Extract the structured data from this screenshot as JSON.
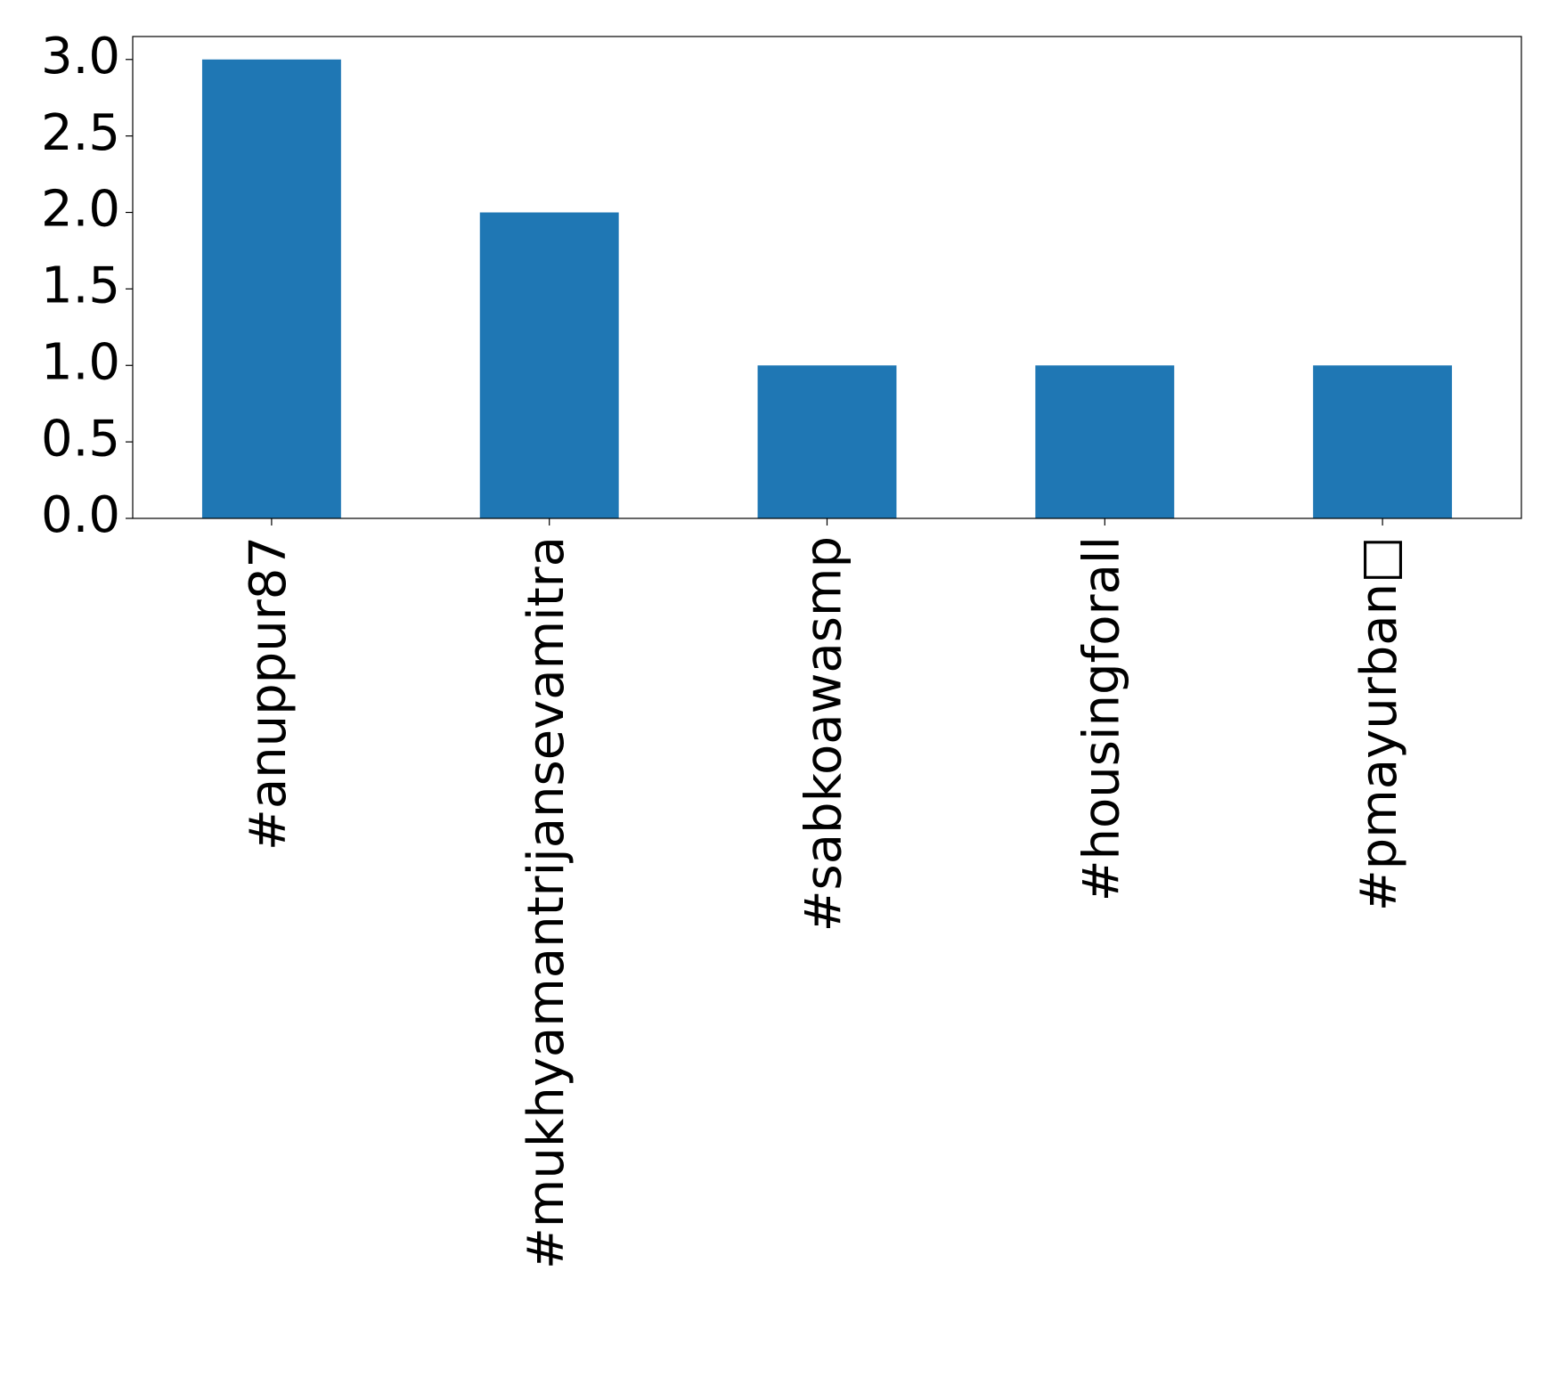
{
  "chart_data": {
    "type": "bar",
    "categories": [
      "#anuppur87",
      "#mukhyamantrijansevamitra",
      "#sabkoawasmp",
      "#housingforall",
      "#pmayurban□"
    ],
    "values": [
      3,
      2,
      1,
      1,
      1
    ],
    "color": "#1f77b4",
    "ylim": [
      0,
      3.15
    ],
    "yticks": [
      {
        "value": 0,
        "label": "0.0"
      },
      {
        "value": 0.5,
        "label": "0.5"
      },
      {
        "value": 1,
        "label": "1.0"
      },
      {
        "value": 1.5,
        "label": "1.5"
      },
      {
        "value": 2,
        "label": "2.0"
      },
      {
        "value": 2.5,
        "label": "2.5"
      },
      {
        "value": 3,
        "label": "3.0"
      }
    ],
    "grid": false
  }
}
